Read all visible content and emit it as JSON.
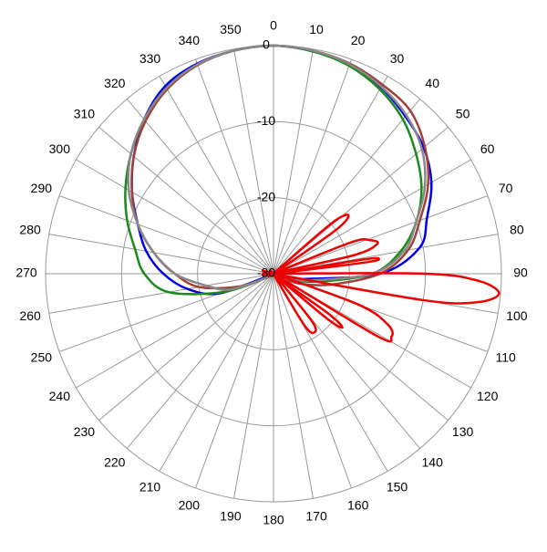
{
  "chart_data": {
    "type": "polar",
    "direction": "clockwise",
    "zero_angle": "top",
    "theta_ticks": [
      0,
      10,
      20,
      30,
      40,
      50,
      60,
      70,
      80,
      90,
      100,
      110,
      120,
      130,
      140,
      150,
      160,
      170,
      180,
      190,
      200,
      210,
      220,
      230,
      240,
      250,
      260,
      270,
      280,
      290,
      300,
      310,
      320,
      330,
      340,
      350
    ],
    "rlim": [
      -30,
      0
    ],
    "rticks": [
      -30,
      -20,
      -10,
      0
    ],
    "grid": true,
    "series": [
      {
        "color": "#0000e6",
        "theta": [
          0,
          10,
          20,
          30,
          40,
          50,
          60,
          70,
          80,
          90,
          100,
          110,
          120,
          150,
          180,
          210,
          240,
          250,
          260,
          270,
          280,
          290,
          300,
          310,
          320,
          330,
          340,
          350
        ],
        "values": [
          0,
          -0.3,
          -0.8,
          -1.7,
          -3,
          -4.2,
          -6,
          -8.5,
          -10.5,
          -16,
          -26,
          -28,
          -30,
          -30,
          -30,
          -30,
          -30,
          -22.5,
          -18.5,
          -15.5,
          -13,
          -11,
          -8.5,
          -6,
          -3.5,
          -1.5,
          -0.6,
          -0.2
        ]
      },
      {
        "color": "#1a8a1a",
        "theta": [
          0,
          10,
          20,
          30,
          40,
          50,
          60,
          70,
          80,
          90,
          100,
          110,
          120,
          150,
          180,
          210,
          240,
          250,
          260,
          270,
          280,
          290,
          300,
          310,
          320,
          330,
          340,
          350
        ],
        "values": [
          0,
          -0.3,
          -0.9,
          -2,
          -3.5,
          -5.5,
          -7.5,
          -10,
          -13,
          -17,
          -24,
          -28,
          -30,
          -30,
          -30,
          -30,
          -29,
          -23,
          -16,
          -13,
          -11.5,
          -9.5,
          -7.5,
          -5.5,
          -3.5,
          -1.8,
          -0.7,
          -0.2
        ]
      },
      {
        "color": "#a0403a",
        "theta": [
          0,
          10,
          20,
          30,
          40,
          50,
          60,
          70,
          80,
          90,
          100,
          110,
          120,
          150,
          180,
          210,
          240,
          250,
          260,
          270,
          280,
          290,
          300,
          310,
          320,
          330,
          340,
          350
        ],
        "values": [
          0,
          -0.2,
          -0.6,
          -1.3,
          -2,
          -4,
          -6.5,
          -9.5,
          -12,
          -16,
          -22,
          -26,
          -29,
          -30,
          -30,
          -30,
          -29,
          -25,
          -20,
          -17,
          -14,
          -11,
          -8.5,
          -6,
          -3.8,
          -2,
          -0.8,
          -0.2
        ]
      },
      {
        "color": "#888888",
        "theta": [
          0,
          10,
          20,
          30,
          40,
          50,
          60,
          70,
          80,
          90,
          100,
          110,
          120,
          150,
          180,
          210,
          240,
          250,
          260,
          270,
          280,
          290,
          300,
          310,
          320,
          330,
          340,
          350
        ],
        "values": [
          0,
          -0.2,
          -0.7,
          -1.6,
          -2.8,
          -4.5,
          -7,
          -10,
          -12.5,
          -17,
          -25,
          -28,
          -30,
          -30,
          -30,
          -30,
          -29,
          -24,
          -21,
          -17,
          -14,
          -11,
          -8,
          -5.5,
          -3.5,
          -1.8,
          -0.7,
          -0.2
        ]
      },
      {
        "color": "#ee0000",
        "theta": [
          0,
          40,
          46,
          49,
          52,
          55,
          58,
          64,
          68,
          71,
          74,
          77,
          80,
          81,
          82,
          83,
          85,
          88,
          90,
          92,
          95,
          98,
          100,
          102,
          106,
          110,
          114,
          118,
          121,
          124,
          126,
          128,
          130,
          133,
          137,
          141,
          145,
          149,
          152,
          160,
          240,
          320
        ],
        "values": [
          -30,
          -30,
          -29.5,
          -20,
          -17.5,
          -20,
          -29.5,
          -29.5,
          -19,
          -16.5,
          -15.8,
          -19,
          -29.5,
          -18,
          -16,
          -18,
          -29.5,
          -29.5,
          -10,
          -3,
          -0.2,
          -3,
          -10,
          -29.5,
          -29.5,
          -18,
          -13.5,
          -12.4,
          -14,
          -29.5,
          -21,
          -18.5,
          -21,
          -29.5,
          -29.5,
          -22,
          -20.6,
          -22,
          -29.5,
          -30,
          -30,
          -30
        ]
      }
    ]
  }
}
